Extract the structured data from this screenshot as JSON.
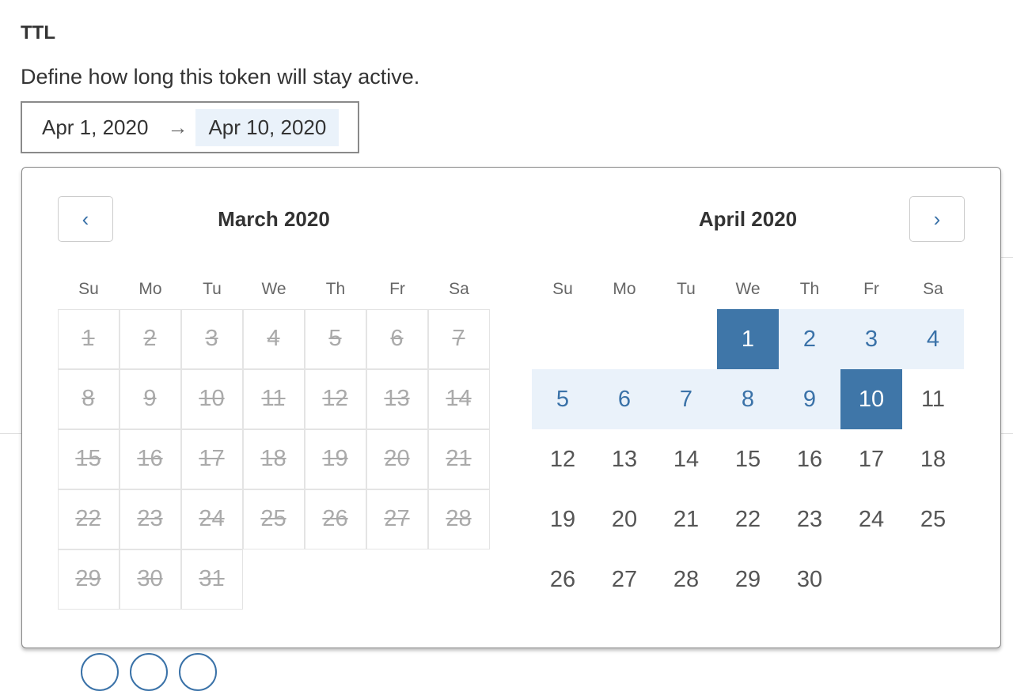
{
  "section": {
    "title": "TTL",
    "description": "Define how long this token will stay active."
  },
  "range_input": {
    "start": "Apr 1, 2020",
    "arrow": "→",
    "end": "Apr 10, 2020"
  },
  "calendar": {
    "prev_icon": "chevron-left-icon",
    "next_icon": "chevron-right-icon",
    "prev_glyph": "‹",
    "next_glyph": "›",
    "weekdays": [
      "Su",
      "Mo",
      "Tu",
      "We",
      "Th",
      "Fr",
      "Sa"
    ],
    "months": [
      {
        "title": "March 2020",
        "first_weekday": 0,
        "days": 31,
        "disabled": true
      },
      {
        "title": "April 2020",
        "first_weekday": 3,
        "days": 30,
        "disabled": false,
        "range_start": 1,
        "range_end": 10
      }
    ]
  },
  "colors": {
    "accent": "#3f76a8",
    "range_bg": "#eaf2fa",
    "disabled": "#aaaaaa"
  }
}
